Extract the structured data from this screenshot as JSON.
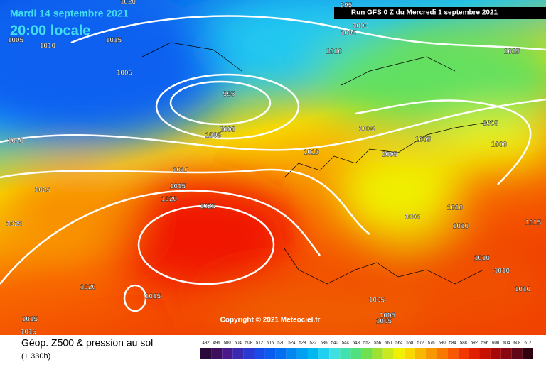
{
  "header": {
    "valid_date": "Mardi 14 septembre 2021",
    "local_time": "20:00 locale",
    "run": "Run GFS 0 Z du Mercredi 1 septembre 2021"
  },
  "copyright": "Copyright © 2021 Meteociel.fr",
  "footer": {
    "title": "Géop. Z500 & pression au sol",
    "lead": "(+ 330h)"
  },
  "isobar_labels": [
    "1020",
    "995",
    "1000",
    "1005",
    "1005",
    "1010",
    "1015",
    "1010",
    "1015",
    "1005",
    "995",
    "1000",
    "1005",
    "1005",
    "1005",
    "1005",
    "1000",
    "1010",
    "1010",
    "1005",
    "1010",
    "1015",
    "1025",
    "1020",
    "1025",
    "1010",
    "1025",
    "1005",
    "1010",
    "1015",
    "1010",
    "1010",
    "1020",
    "1015",
    "1010",
    "1005",
    "1005",
    "1005",
    "1015",
    "1015"
  ],
  "legend": {
    "labels": [
      492,
      496,
      500,
      504,
      508,
      512,
      516,
      520,
      524,
      528,
      532,
      536,
      540,
      544,
      548,
      552,
      556,
      560,
      564,
      568,
      572,
      576,
      580,
      584,
      588,
      592,
      596,
      600,
      604,
      608,
      612
    ],
    "colors": [
      "#2a0a3a",
      "#3d0f5c",
      "#4a1a8a",
      "#3a2ab0",
      "#2a3ad0",
      "#1a4ae8",
      "#0a5cf0",
      "#0070f0",
      "#0088f0",
      "#00a0f0",
      "#00b8f0",
      "#20d0f0",
      "#40e0e0",
      "#40e0b0",
      "#50e080",
      "#70e050",
      "#a0e030",
      "#c8e820",
      "#f0f000",
      "#f8d800",
      "#f8b800",
      "#f89800",
      "#f87800",
      "#f85800",
      "#f03800",
      "#e02000",
      "#c81000",
      "#a80808",
      "#880810",
      "#600818",
      "#300010"
    ]
  }
}
